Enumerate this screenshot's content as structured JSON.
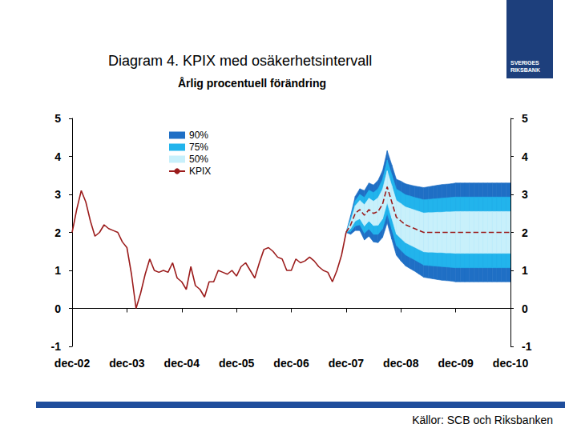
{
  "chart_data": {
    "type": "line",
    "title": "Diagram 4. KPIX med osäkerhetsintervall",
    "subtitle": "Årlig procentuell förändring",
    "source": "Källor: SCB och Riksbanken",
    "logo": "SVERIGES RIKSBANK",
    "categories": [
      "dec-02",
      null,
      null,
      null,
      null,
      null,
      null,
      null,
      null,
      null,
      null,
      null,
      "dec-03",
      null,
      null,
      null,
      null,
      null,
      null,
      null,
      null,
      null,
      null,
      null,
      "dec-04",
      null,
      null,
      null,
      null,
      null,
      null,
      null,
      null,
      null,
      null,
      null,
      "dec-05",
      null,
      null,
      null,
      null,
      null,
      null,
      null,
      null,
      null,
      null,
      null,
      "dec-06",
      null,
      null,
      null,
      null,
      null,
      null,
      null,
      null,
      null,
      null,
      null,
      "dec-07",
      null,
      null,
      null,
      null,
      null,
      null,
      null,
      null,
      null,
      null,
      null,
      "dec-08",
      null,
      null,
      null,
      null,
      null,
      null,
      null,
      null,
      null,
      null,
      null,
      "dec-09",
      null,
      null,
      null,
      null,
      null,
      null,
      null,
      null,
      null,
      null,
      null,
      "dec-10"
    ],
    "ylim": [
      -1,
      5
    ],
    "yticks": [
      -1,
      0,
      1,
      2,
      3,
      4,
      5
    ],
    "y2lim": [
      -1,
      5
    ],
    "y2ticks": [
      -1,
      0,
      1,
      2,
      3,
      4,
      5
    ],
    "grid": false,
    "legend": "upper left",
    "series": [
      {
        "name": "90%",
        "type": "band",
        "color": "#1f6fc5",
        "lower": [
          null,
          null,
          null,
          null,
          null,
          null,
          null,
          null,
          null,
          null,
          null,
          null,
          null,
          null,
          null,
          null,
          null,
          null,
          null,
          null,
          null,
          null,
          null,
          null,
          null,
          null,
          null,
          null,
          null,
          null,
          null,
          null,
          null,
          null,
          null,
          null,
          null,
          null,
          null,
          null,
          null,
          null,
          null,
          null,
          null,
          null,
          null,
          null,
          null,
          null,
          null,
          null,
          null,
          null,
          null,
          null,
          null,
          null,
          null,
          null,
          2.0,
          1.95,
          2.05,
          2.05,
          1.8,
          1.9,
          1.75,
          1.73,
          1.87,
          2.25,
          1.82,
          1.4,
          1.25,
          1.12,
          1.05,
          0.98,
          0.9,
          0.82,
          0.8,
          0.78,
          0.76,
          0.74,
          0.73,
          0.72,
          0.7,
          0.7,
          0.7,
          0.7,
          0.7,
          0.7,
          0.7,
          0.7,
          0.7,
          0.7,
          0.7,
          0.7,
          0.7
        ],
        "upper": [
          null,
          null,
          null,
          null,
          null,
          null,
          null,
          null,
          null,
          null,
          null,
          null,
          null,
          null,
          null,
          null,
          null,
          null,
          null,
          null,
          null,
          null,
          null,
          null,
          null,
          null,
          null,
          null,
          null,
          null,
          null,
          null,
          null,
          null,
          null,
          null,
          null,
          null,
          null,
          null,
          null,
          null,
          null,
          null,
          null,
          null,
          null,
          null,
          null,
          null,
          null,
          null,
          null,
          null,
          null,
          null,
          null,
          null,
          null,
          null,
          2.0,
          2.45,
          2.95,
          3.15,
          3.1,
          3.3,
          3.25,
          3.37,
          3.63,
          4.15,
          3.78,
          3.4,
          3.35,
          3.28,
          3.25,
          3.22,
          3.2,
          3.18,
          3.2,
          3.22,
          3.24,
          3.26,
          3.27,
          3.28,
          3.3,
          3.3,
          3.3,
          3.3,
          3.3,
          3.3,
          3.3,
          3.3,
          3.3,
          3.3,
          3.3,
          3.3,
          3.3
        ]
      },
      {
        "name": "75%",
        "type": "band",
        "color": "#22b4ec",
        "lower": [
          null,
          null,
          null,
          null,
          null,
          null,
          null,
          null,
          null,
          null,
          null,
          null,
          null,
          null,
          null,
          null,
          null,
          null,
          null,
          null,
          null,
          null,
          null,
          null,
          null,
          null,
          null,
          null,
          null,
          null,
          null,
          null,
          null,
          null,
          null,
          null,
          null,
          null,
          null,
          null,
          null,
          null,
          null,
          null,
          null,
          null,
          null,
          null,
          null,
          null,
          null,
          null,
          null,
          null,
          null,
          null,
          null,
          null,
          null,
          null,
          2.0,
          2.02,
          2.17,
          2.2,
          1.98,
          2.09,
          1.95,
          1.95,
          2.1,
          2.5,
          2.08,
          1.66,
          1.53,
          1.41,
          1.34,
          1.28,
          1.21,
          1.14,
          1.13,
          1.12,
          1.11,
          1.1,
          1.09,
          1.08,
          1.07,
          1.07,
          1.07,
          1.07,
          1.07,
          1.07,
          1.07,
          1.07,
          1.07,
          1.07,
          1.07,
          1.07,
          1.07
        ],
        "upper": [
          null,
          null,
          null,
          null,
          null,
          null,
          null,
          null,
          null,
          null,
          null,
          null,
          null,
          null,
          null,
          null,
          null,
          null,
          null,
          null,
          null,
          null,
          null,
          null,
          null,
          null,
          null,
          null,
          null,
          null,
          null,
          null,
          null,
          null,
          null,
          null,
          null,
          null,
          null,
          null,
          null,
          null,
          null,
          null,
          null,
          null,
          null,
          null,
          null,
          null,
          null,
          null,
          null,
          null,
          null,
          null,
          null,
          null,
          null,
          null,
          2.0,
          2.38,
          2.83,
          3.0,
          2.92,
          3.11,
          3.05,
          3.15,
          3.4,
          3.9,
          3.52,
          3.14,
          3.07,
          2.99,
          2.96,
          2.92,
          2.89,
          2.86,
          2.87,
          2.88,
          2.89,
          2.9,
          2.91,
          2.92,
          2.93,
          2.93,
          2.93,
          2.93,
          2.93,
          2.93,
          2.93,
          2.93,
          2.93,
          2.93,
          2.93,
          2.93,
          2.93
        ]
      },
      {
        "name": "50%",
        "type": "band",
        "color": "#c8f0fb",
        "lower": [
          null,
          null,
          null,
          null,
          null,
          null,
          null,
          null,
          null,
          null,
          null,
          null,
          null,
          null,
          null,
          null,
          null,
          null,
          null,
          null,
          null,
          null,
          null,
          null,
          null,
          null,
          null,
          null,
          null,
          null,
          null,
          null,
          null,
          null,
          null,
          null,
          null,
          null,
          null,
          null,
          null,
          null,
          null,
          null,
          null,
          null,
          null,
          null,
          null,
          null,
          null,
          null,
          null,
          null,
          null,
          null,
          null,
          null,
          null,
          null,
          2.0,
          2.1,
          2.3,
          2.36,
          2.17,
          2.3,
          2.18,
          2.19,
          2.36,
          2.78,
          2.37,
          1.96,
          1.84,
          1.73,
          1.67,
          1.61,
          1.55,
          1.49,
          1.48,
          1.48,
          1.47,
          1.47,
          1.46,
          1.46,
          1.45,
          1.45,
          1.45,
          1.45,
          1.45,
          1.45,
          1.45,
          1.45,
          1.45,
          1.45,
          1.45,
          1.45,
          1.45
        ],
        "upper": [
          null,
          null,
          null,
          null,
          null,
          null,
          null,
          null,
          null,
          null,
          null,
          null,
          null,
          null,
          null,
          null,
          null,
          null,
          null,
          null,
          null,
          null,
          null,
          null,
          null,
          null,
          null,
          null,
          null,
          null,
          null,
          null,
          null,
          null,
          null,
          null,
          null,
          null,
          null,
          null,
          null,
          null,
          null,
          null,
          null,
          null,
          null,
          null,
          null,
          null,
          null,
          null,
          null,
          null,
          null,
          null,
          null,
          null,
          null,
          null,
          2.0,
          2.3,
          2.7,
          2.84,
          2.73,
          2.9,
          2.82,
          2.91,
          3.14,
          3.62,
          3.23,
          2.84,
          2.76,
          2.67,
          2.63,
          2.59,
          2.55,
          2.51,
          2.52,
          2.52,
          2.53,
          2.53,
          2.54,
          2.54,
          2.55,
          2.55,
          2.55,
          2.55,
          2.55,
          2.55,
          2.55,
          2.55,
          2.55,
          2.55,
          2.55,
          2.55,
          2.55
        ]
      },
      {
        "name": "KPIX",
        "type": "line",
        "color": "#9b1b1b",
        "line_style": "solid",
        "values": [
          2.0,
          2.6,
          3.1,
          2.8,
          2.3,
          1.9,
          2.0,
          2.2,
          2.1,
          2.05,
          2.0,
          1.75,
          1.6,
          0.9,
          0.0,
          0.4,
          0.9,
          1.3,
          1.0,
          0.95,
          1.0,
          0.95,
          1.2,
          0.8,
          0.7,
          0.5,
          1.1,
          0.6,
          0.5,
          0.3,
          0.7,
          0.7,
          1.0,
          0.95,
          0.9,
          1.0,
          0.85,
          1.1,
          1.2,
          1.0,
          0.8,
          1.2,
          1.55,
          1.6,
          1.5,
          1.35,
          1.3,
          1.0,
          1.0,
          1.3,
          1.2,
          1.25,
          1.35,
          1.25,
          1.1,
          1.0,
          0.95,
          0.7,
          1.0,
          1.4,
          2.0,
          null,
          null,
          null,
          null,
          null,
          null,
          null,
          null,
          null,
          null,
          null,
          null,
          null,
          null,
          null,
          null,
          null,
          null,
          null,
          null,
          null,
          null,
          null,
          null,
          null,
          null,
          null,
          null,
          null,
          null,
          null,
          null,
          null,
          null,
          null,
          null
        ]
      },
      {
        "type": "line",
        "color": "#9b1b1b",
        "line_style": "dashed",
        "values": [
          null,
          null,
          null,
          null,
          null,
          null,
          null,
          null,
          null,
          null,
          null,
          null,
          null,
          null,
          null,
          null,
          null,
          null,
          null,
          null,
          null,
          null,
          null,
          null,
          null,
          null,
          null,
          null,
          null,
          null,
          null,
          null,
          null,
          null,
          null,
          null,
          null,
          null,
          null,
          null,
          null,
          null,
          null,
          null,
          null,
          null,
          null,
          null,
          null,
          null,
          null,
          null,
          null,
          null,
          null,
          null,
          null,
          null,
          null,
          null,
          2.0,
          2.2,
          2.5,
          2.6,
          2.45,
          2.6,
          2.5,
          2.55,
          2.75,
          3.2,
          2.8,
          2.4,
          2.3,
          2.2,
          2.15,
          2.1,
          2.05,
          2.0,
          2.0,
          2.0,
          2.0,
          2.0,
          2.0,
          2.0,
          2.0,
          2.0,
          2.0,
          2.0,
          2.0,
          2.0,
          2.0,
          2.0,
          2.0,
          2.0,
          2.0,
          2.0,
          2.0
        ]
      }
    ]
  }
}
